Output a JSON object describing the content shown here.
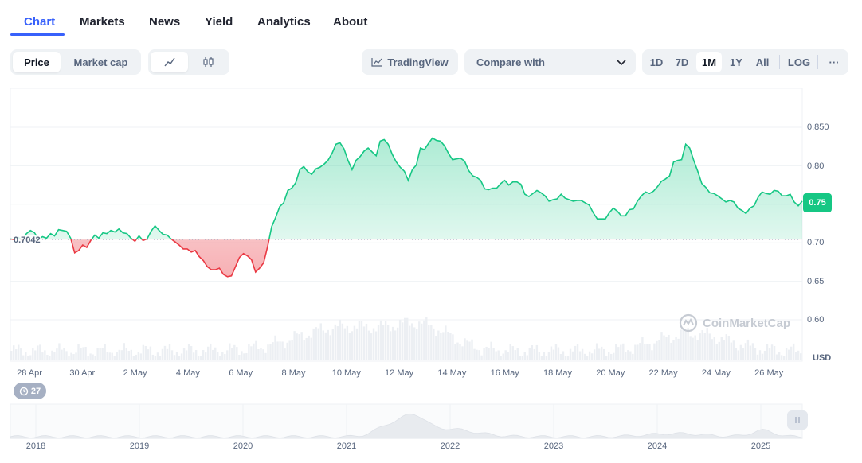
{
  "tabs": [
    {
      "label": "Chart",
      "active": true
    },
    {
      "label": "Markets"
    },
    {
      "label": "News"
    },
    {
      "label": "Yield"
    },
    {
      "label": "Analytics"
    },
    {
      "label": "About"
    }
  ],
  "toolbar": {
    "price_label": "Price",
    "marketcap_label": "Market cap",
    "line_icon": "line-chart-icon",
    "candle_icon": "candlestick-icon",
    "tradingview_label": "TradingView",
    "tradingview_icon": "chart-line-icon",
    "compare_label": "Compare with",
    "compare_icon": "chevron-down-icon",
    "ranges": [
      "1D",
      "7D",
      "1M",
      "1Y",
      "All"
    ],
    "active_range": "1M",
    "log_label": "LOG",
    "more_label": "···"
  },
  "chart": {
    "current_price": "0.75",
    "open_price_label": "0.7042",
    "currency": "USD",
    "watermark": "CoinMarketCap",
    "events_count": "27",
    "events_icon": "history-icon",
    "colors": {
      "up": "#16c784",
      "down": "#ea3943"
    }
  },
  "chart_data": {
    "type": "area",
    "x_ticks": [
      "28 Apr",
      "30 Apr",
      "2 May",
      "4 May",
      "6 May",
      "8 May",
      "10 May",
      "12 May",
      "14 May",
      "16 May",
      "18 May",
      "20 May",
      "22 May",
      "24 May",
      "26 May"
    ],
    "y_ticks": [
      "0.850",
      "0.80",
      "0.75",
      "0.70",
      "0.65",
      "0.60"
    ],
    "ylim": [
      0.58,
      0.88
    ],
    "baseline": 0.7042,
    "grid": true,
    "series": [
      {
        "values": [
          0.705,
          0.704,
          0.707,
          0.703,
          0.712,
          0.716,
          0.713,
          0.705,
          0.708,
          0.706,
          0.712,
          0.709,
          0.717,
          0.716,
          0.715,
          0.706,
          0.687,
          0.69,
          0.697,
          0.694,
          0.703,
          0.71,
          0.706,
          0.713,
          0.712,
          0.716,
          0.714,
          0.718,
          0.713,
          0.712,
          0.706,
          0.702,
          0.709,
          0.703,
          0.705,
          0.715,
          0.722,
          0.716,
          0.711,
          0.71,
          0.705,
          0.701,
          0.697,
          0.692,
          0.692,
          0.688,
          0.69,
          0.682,
          0.677,
          0.669,
          0.665,
          0.665,
          0.667,
          0.659,
          0.656,
          0.657,
          0.669,
          0.681,
          0.686,
          0.683,
          0.678,
          0.662,
          0.667,
          0.674,
          0.695,
          0.721,
          0.733,
          0.747,
          0.752,
          0.768,
          0.771,
          0.778,
          0.795,
          0.799,
          0.792,
          0.789,
          0.796,
          0.798,
          0.802,
          0.807,
          0.816,
          0.828,
          0.83,
          0.822,
          0.807,
          0.795,
          0.807,
          0.812,
          0.819,
          0.823,
          0.818,
          0.813,
          0.832,
          0.834,
          0.828,
          0.815,
          0.805,
          0.798,
          0.793,
          0.781,
          0.795,
          0.801,
          0.823,
          0.821,
          0.829,
          0.836,
          0.833,
          0.832,
          0.826,
          0.816,
          0.808,
          0.809,
          0.81,
          0.806,
          0.794,
          0.787,
          0.785,
          0.781,
          0.77,
          0.769,
          0.771,
          0.771,
          0.777,
          0.781,
          0.775,
          0.779,
          0.779,
          0.776,
          0.763,
          0.76,
          0.764,
          0.768,
          0.765,
          0.761,
          0.754,
          0.756,
          0.757,
          0.763,
          0.758,
          0.756,
          0.754,
          0.755,
          0.755,
          0.752,
          0.749,
          0.739,
          0.731,
          0.731,
          0.731,
          0.739,
          0.745,
          0.741,
          0.735,
          0.735,
          0.743,
          0.744,
          0.754,
          0.761,
          0.766,
          0.764,
          0.767,
          0.773,
          0.78,
          0.783,
          0.787,
          0.805,
          0.807,
          0.808,
          0.828,
          0.823,
          0.807,
          0.793,
          0.777,
          0.772,
          0.765,
          0.764,
          0.761,
          0.757,
          0.753,
          0.755,
          0.753,
          0.745,
          0.742,
          0.738,
          0.745,
          0.748,
          0.759,
          0.766,
          0.764,
          0.763,
          0.768,
          0.767,
          0.761,
          0.761,
          0.763,
          0.753,
          0.748,
          0.754
        ]
      }
    ]
  },
  "minimap": {
    "years": [
      "2018",
      "2019",
      "2020",
      "2021",
      "2022",
      "2023",
      "2024",
      "2025"
    ]
  }
}
